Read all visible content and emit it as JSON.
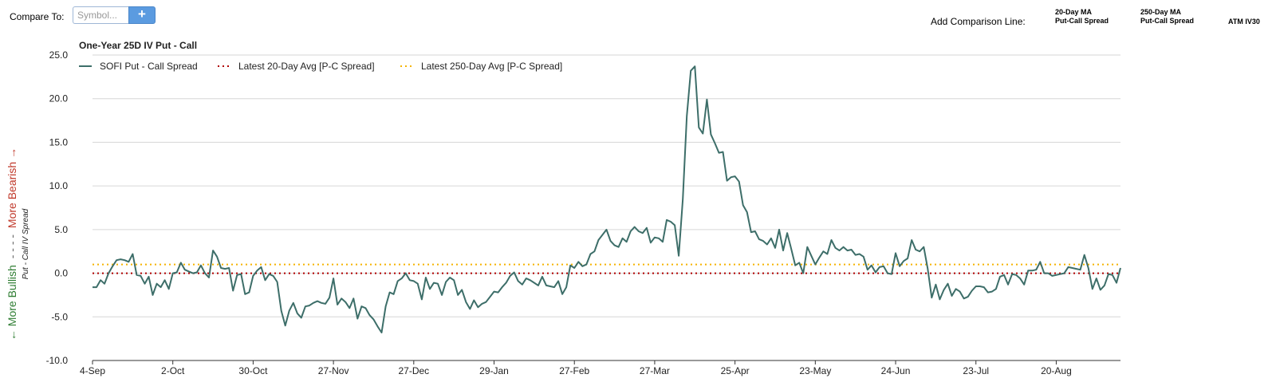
{
  "toolbar": {
    "compare_label": "Compare To:",
    "symbol_placeholder": "Symbol...",
    "add_button_label": "+",
    "add_comparison_label": "Add Comparison Line:",
    "comparison_options": [
      {
        "line1": "20-Day MA",
        "line2": "Put-Call Spread"
      },
      {
        "line1": "250-Day MA",
        "line2": "Put-Call Spread"
      },
      {
        "line1": "ATM IV30",
        "line2": ""
      }
    ]
  },
  "chart_data": {
    "type": "line",
    "title": "One-Year 25D IV Put - Call",
    "ylabel": "Put - Call IV Spread",
    "ylabel_bullish": "← More Bullish",
    "ylabel_separator": "- - - -",
    "ylabel_bearish": "More Bearish →",
    "ylim": [
      -10,
      25
    ],
    "yticks": [
      "25.0",
      "20.0",
      "15.0",
      "10.0",
      "5.0",
      "0.0",
      "-5.0",
      "-10.0"
    ],
    "grid": true,
    "legend_position": "top-left",
    "x_ticks": [
      "4-Sep",
      "2-Oct",
      "30-Oct",
      "27-Nov",
      "27-Dec",
      "29-Jan",
      "27-Feb",
      "27-Mar",
      "25-Apr",
      "23-May",
      "24-Jun",
      "23-Jul",
      "20-Aug"
    ],
    "x_tick_index": [
      0,
      20,
      40,
      60,
      80,
      100,
      120,
      140,
      160,
      180,
      200,
      220,
      240
    ],
    "series": [
      {
        "name": "SOFI Put - Call Spread",
        "color": "#3d6e69",
        "style": "solid",
        "values": [
          -1.6,
          -1.6,
          -0.8,
          -1.2,
          0.0,
          0.8,
          1.5,
          1.6,
          1.5,
          1.3,
          2.2,
          -0.2,
          -0.3,
          -1.2,
          -0.4,
          -2.5,
          -1.2,
          -1.6,
          -0.8,
          -1.8,
          0.0,
          0.1,
          1.2,
          0.4,
          0.2,
          0.0,
          0.1,
          0.9,
          0.0,
          -0.5,
          2.6,
          1.9,
          0.6,
          0.5,
          0.6,
          -2.0,
          -0.2,
          -0.1,
          -2.4,
          -2.2,
          -0.3,
          0.3,
          0.7,
          -0.8,
          -0.1,
          -0.3,
          -1.0,
          -4.3,
          -6.0,
          -4.3,
          -3.4,
          -4.6,
          -5.1,
          -3.8,
          -3.7,
          -3.4,
          -3.2,
          -3.4,
          -3.5,
          -2.8,
          -0.6,
          -3.6,
          -2.9,
          -3.3,
          -4.0,
          -2.9,
          -5.2,
          -3.8,
          -4.0,
          -4.8,
          -5.3,
          -6.1,
          -6.8,
          -3.8,
          -2.2,
          -2.4,
          -0.9,
          -0.6,
          0.0,
          -0.8,
          -0.9,
          -1.2,
          -3.0,
          -0.5,
          -1.8,
          -1.1,
          -1.2,
          -2.5,
          -1.0,
          -0.5,
          -0.8,
          -2.5,
          -1.9,
          -3.3,
          -4.1,
          -3.1,
          -3.9,
          -3.5,
          -3.3,
          -2.7,
          -2.1,
          -2.2,
          -1.6,
          -1.1,
          -0.3,
          0.1,
          -0.9,
          -1.3,
          -0.6,
          -0.8,
          -1.1,
          -1.4,
          -0.4,
          -1.4,
          -1.5,
          -1.6,
          -0.9,
          -2.4,
          -1.6,
          0.9,
          0.6,
          1.3,
          0.8,
          1.0,
          2.2,
          2.5,
          3.8,
          4.4,
          5.0,
          3.7,
          3.2,
          3.0,
          4.0,
          3.6,
          4.8,
          5.3,
          4.8,
          4.6,
          5.2,
          3.5,
          4.1,
          4.0,
          3.6,
          6.1,
          5.9,
          5.5,
          2.0,
          8.5,
          18.0,
          23.2,
          23.7,
          16.7,
          16.0,
          19.9,
          15.9,
          14.9,
          13.8,
          13.9,
          10.6,
          11.0,
          11.1,
          10.5,
          7.8,
          7.0,
          4.7,
          4.8,
          3.9,
          3.7,
          3.3,
          4.0,
          2.9,
          5.0,
          2.6,
          4.6,
          2.8,
          0.9,
          1.2,
          0.0,
          3.0,
          2.0,
          1.0,
          1.8,
          2.5,
          2.2,
          3.8,
          2.9,
          2.6,
          3.0,
          2.6,
          2.7,
          2.1,
          2.2,
          1.9,
          0.4,
          0.9,
          0.1,
          0.7,
          0.8,
          0.0,
          -0.1,
          2.3,
          0.8,
          1.4,
          1.7,
          3.8,
          2.7,
          2.5,
          3.0,
          0.5,
          -2.8,
          -1.3,
          -3.0,
          -1.9,
          -1.2,
          -2.6,
          -1.8,
          -2.1,
          -2.9,
          -2.7,
          -2.0,
          -1.5,
          -1.5,
          -1.6,
          -2.2,
          -2.1,
          -1.8,
          -0.4,
          -0.2,
          -1.3,
          -0.1,
          -0.2,
          -0.6,
          -1.3,
          0.3,
          0.3,
          0.4,
          1.3,
          0.0,
          0.0,
          -0.3,
          -0.2,
          -0.1,
          0.0,
          0.7,
          0.6,
          0.5,
          0.4,
          2.1,
          0.6,
          -1.8,
          -0.6,
          -1.9,
          -1.4,
          -0.1,
          -0.2,
          -1.1,
          0.6
        ]
      },
      {
        "name": "Latest 20-Day Avg [P-C Spread]",
        "color": "#b00000",
        "style": "dotted",
        "constant": 0.0
      },
      {
        "name": "Latest 250-Day Avg [P-C Spread]",
        "color": "#f5b400",
        "style": "dotted",
        "constant": 1.0
      }
    ]
  }
}
